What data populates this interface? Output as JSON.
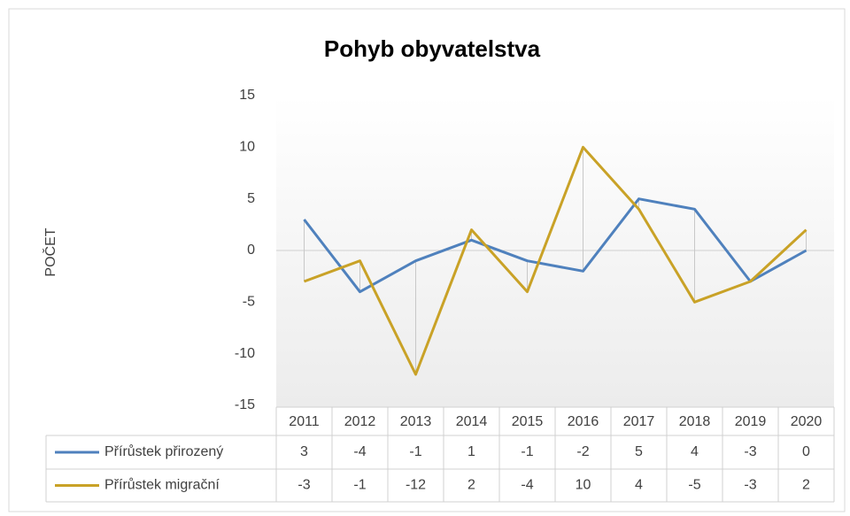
{
  "chart_data": {
    "type": "line",
    "title": "Pohyb obyvatelstva",
    "y_label": "POČET",
    "categories": [
      "2011",
      "2012",
      "2013",
      "2014",
      "2015",
      "2016",
      "2017",
      "2018",
      "2019",
      "2020"
    ],
    "series": [
      {
        "name": "Přírůstek přirozený",
        "color": "#4f81bd",
        "values": [
          3,
          -4,
          -1,
          1,
          -1,
          -2,
          5,
          4,
          -3,
          0
        ]
      },
      {
        "name": "Přírůstek migrační",
        "color": "#c9a227",
        "values": [
          -3,
          -1,
          -12,
          2,
          -4,
          10,
          4,
          -5,
          -3,
          2
        ]
      }
    ],
    "ylim": [
      -15,
      15
    ],
    "yticks": [
      -15,
      -10,
      -5,
      0,
      5,
      10,
      15
    ],
    "high_low_lines": true,
    "data_table": true
  }
}
